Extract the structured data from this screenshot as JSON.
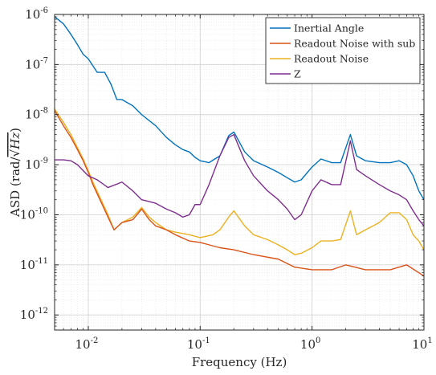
{
  "chart_data": {
    "type": "line",
    "xscale": "log",
    "yscale": "log",
    "xlim": [
      0.005,
      10
    ],
    "ylim": [
      5e-13,
      1e-06
    ],
    "xlabel": "Frequency (Hz)",
    "ylabel_prefix": "ASD  (rad/",
    "ylabel_math": "√Hz",
    "ylabel_suffix": ")",
    "grid": true,
    "minor_grid": true,
    "legend_position": "top-right",
    "x_ticks": [
      {
        "value": 0.01,
        "base": "10",
        "exp": "-2"
      },
      {
        "value": 0.1,
        "base": "10",
        "exp": "-1"
      },
      {
        "value": 1,
        "base": "10",
        "exp": "0"
      },
      {
        "value": 10,
        "base": "10",
        "exp": "1"
      }
    ],
    "y_ticks": [
      {
        "value": 1e-12,
        "base": "10",
        "exp": "-12"
      },
      {
        "value": 1e-11,
        "base": "10",
        "exp": "-11"
      },
      {
        "value": 1e-10,
        "base": "10",
        "exp": "-10"
      },
      {
        "value": 1e-09,
        "base": "10",
        "exp": "-9"
      },
      {
        "value": 1e-08,
        "base": "10",
        "exp": "-8"
      },
      {
        "value": 1e-07,
        "base": "10",
        "exp": "-7"
      },
      {
        "value": 1e-06,
        "base": "10",
        "exp": "-6"
      }
    ],
    "series": [
      {
        "name": "Inertial Angle",
        "color": "#0072BD",
        "points": [
          [
            0.005,
            9e-07
          ],
          [
            0.006,
            6.5e-07
          ],
          [
            0.007,
            4e-07
          ],
          [
            0.008,
            2.5e-07
          ],
          [
            0.009,
            1.6e-07
          ],
          [
            0.01,
            1.3e-07
          ],
          [
            0.012,
            7e-08
          ],
          [
            0.014,
            7e-08
          ],
          [
            0.016,
            4e-08
          ],
          [
            0.018,
            2e-08
          ],
          [
            0.02,
            2e-08
          ],
          [
            0.025,
            1.5e-08
          ],
          [
            0.03,
            1e-08
          ],
          [
            0.04,
            6e-09
          ],
          [
            0.05,
            3.5e-09
          ],
          [
            0.06,
            2.5e-09
          ],
          [
            0.07,
            2e-09
          ],
          [
            0.08,
            1.8e-09
          ],
          [
            0.09,
            1.4e-09
          ],
          [
            0.1,
            1.2e-09
          ],
          [
            0.12,
            1.1e-09
          ],
          [
            0.15,
            1.5e-09
          ],
          [
            0.18,
            3.8e-09
          ],
          [
            0.2,
            4.5e-09
          ],
          [
            0.25,
            1.8e-09
          ],
          [
            0.3,
            1.2e-09
          ],
          [
            0.4,
            9e-10
          ],
          [
            0.5,
            7e-10
          ],
          [
            0.6,
            5.5e-10
          ],
          [
            0.7,
            4.5e-10
          ],
          [
            0.8,
            5e-10
          ],
          [
            1,
            9e-10
          ],
          [
            1.2,
            1.3e-09
          ],
          [
            1.5,
            1.1e-09
          ],
          [
            1.8,
            1.1e-09
          ],
          [
            2.2,
            4e-09
          ],
          [
            2.5,
            1.5e-09
          ],
          [
            3,
            1.2e-09
          ],
          [
            4,
            1.1e-09
          ],
          [
            5,
            1.1e-09
          ],
          [
            6,
            1.2e-09
          ],
          [
            7,
            1e-09
          ],
          [
            8,
            6e-10
          ],
          [
            9,
            3e-10
          ],
          [
            10,
            2e-10
          ]
        ]
      },
      {
        "name": "Readout Noise with sub",
        "color": "#D95319",
        "points": [
          [
            0.005,
            1.2e-08
          ],
          [
            0.006,
            6e-09
          ],
          [
            0.007,
            3.5e-09
          ],
          [
            0.008,
            2e-09
          ],
          [
            0.009,
            1.2e-09
          ],
          [
            0.01,
            7e-10
          ],
          [
            0.011,
            4e-10
          ],
          [
            0.013,
            1.8e-10
          ],
          [
            0.015,
            9e-11
          ],
          [
            0.017,
            5e-11
          ],
          [
            0.02,
            7e-11
          ],
          [
            0.025,
            8e-11
          ],
          [
            0.03,
            1.3e-10
          ],
          [
            0.035,
            8e-11
          ],
          [
            0.04,
            6e-11
          ],
          [
            0.05,
            5e-11
          ],
          [
            0.06,
            4e-11
          ],
          [
            0.08,
            3e-11
          ],
          [
            0.1,
            2.8e-11
          ],
          [
            0.15,
            2.2e-11
          ],
          [
            0.2,
            2e-11
          ],
          [
            0.3,
            1.6e-11
          ],
          [
            0.5,
            1.3e-11
          ],
          [
            0.7,
            9e-12
          ],
          [
            1,
            8e-12
          ],
          [
            1.5,
            8e-12
          ],
          [
            2,
            1e-11
          ],
          [
            3,
            8e-12
          ],
          [
            5,
            8e-12
          ],
          [
            7,
            1e-11
          ],
          [
            10,
            6e-12
          ]
        ]
      },
      {
        "name": "Readout Noise",
        "color": "#EDB120",
        "points": [
          [
            0.005,
            1.3e-08
          ],
          [
            0.006,
            7e-09
          ],
          [
            0.007,
            4e-09
          ],
          [
            0.008,
            2.2e-09
          ],
          [
            0.009,
            1.3e-09
          ],
          [
            0.01,
            7.5e-10
          ],
          [
            0.011,
            4.5e-10
          ],
          [
            0.013,
            2e-10
          ],
          [
            0.015,
            1e-10
          ],
          [
            0.017,
            5e-11
          ],
          [
            0.02,
            7e-11
          ],
          [
            0.025,
            9e-11
          ],
          [
            0.03,
            1.4e-10
          ],
          [
            0.035,
            9e-11
          ],
          [
            0.04,
            7e-11
          ],
          [
            0.05,
            5e-11
          ],
          [
            0.06,
            4.5e-11
          ],
          [
            0.08,
            4e-11
          ],
          [
            0.1,
            3.5e-11
          ],
          [
            0.13,
            4e-11
          ],
          [
            0.15,
            5e-11
          ],
          [
            0.18,
            9e-11
          ],
          [
            0.2,
            1.2e-10
          ],
          [
            0.25,
            6e-11
          ],
          [
            0.3,
            4e-11
          ],
          [
            0.4,
            3.2e-11
          ],
          [
            0.5,
            2.5e-11
          ],
          [
            0.6,
            2e-11
          ],
          [
            0.7,
            1.6e-11
          ],
          [
            0.8,
            1.7e-11
          ],
          [
            1,
            2.2e-11
          ],
          [
            1.2,
            3e-11
          ],
          [
            1.5,
            3e-11
          ],
          [
            1.8,
            3.2e-11
          ],
          [
            2.2,
            1.2e-10
          ],
          [
            2.5,
            4e-11
          ],
          [
            3,
            5e-11
          ],
          [
            4,
            7e-11
          ],
          [
            5,
            1.1e-10
          ],
          [
            6,
            1.1e-10
          ],
          [
            7,
            8e-11
          ],
          [
            8,
            4e-11
          ],
          [
            9,
            3e-11
          ],
          [
            10,
            2e-11
          ]
        ]
      },
      {
        "name": "Z",
        "color": "#7E2F8E",
        "points": [
          [
            0.005,
            1.25e-09
          ],
          [
            0.006,
            1.25e-09
          ],
          [
            0.007,
            1.2e-09
          ],
          [
            0.008,
            1e-09
          ],
          [
            0.01,
            6e-10
          ],
          [
            0.012,
            5e-10
          ],
          [
            0.015,
            3.5e-10
          ],
          [
            0.02,
            4.5e-10
          ],
          [
            0.025,
            3e-10
          ],
          [
            0.03,
            2e-10
          ],
          [
            0.04,
            1.7e-10
          ],
          [
            0.05,
            1.3e-10
          ],
          [
            0.06,
            1.1e-10
          ],
          [
            0.07,
            9e-11
          ],
          [
            0.08,
            1e-10
          ],
          [
            0.09,
            1.6e-10
          ],
          [
            0.1,
            1.6e-10
          ],
          [
            0.12,
            4e-10
          ],
          [
            0.15,
            1.5e-09
          ],
          [
            0.18,
            3.5e-09
          ],
          [
            0.2,
            4e-09
          ],
          [
            0.25,
            1.2e-09
          ],
          [
            0.3,
            6e-10
          ],
          [
            0.4,
            3e-10
          ],
          [
            0.5,
            2e-10
          ],
          [
            0.6,
            1.3e-10
          ],
          [
            0.7,
            8e-11
          ],
          [
            0.8,
            1e-10
          ],
          [
            1,
            3e-10
          ],
          [
            1.2,
            5e-10
          ],
          [
            1.5,
            4e-10
          ],
          [
            1.8,
            4e-10
          ],
          [
            2.2,
            3e-09
          ],
          [
            2.5,
            8e-10
          ],
          [
            3,
            6e-10
          ],
          [
            4,
            4e-10
          ],
          [
            5,
            3e-10
          ],
          [
            6,
            2.5e-10
          ],
          [
            7,
            2e-10
          ],
          [
            8,
            1.2e-10
          ],
          [
            9,
            8e-11
          ],
          [
            10,
            6e-11
          ]
        ]
      }
    ]
  }
}
